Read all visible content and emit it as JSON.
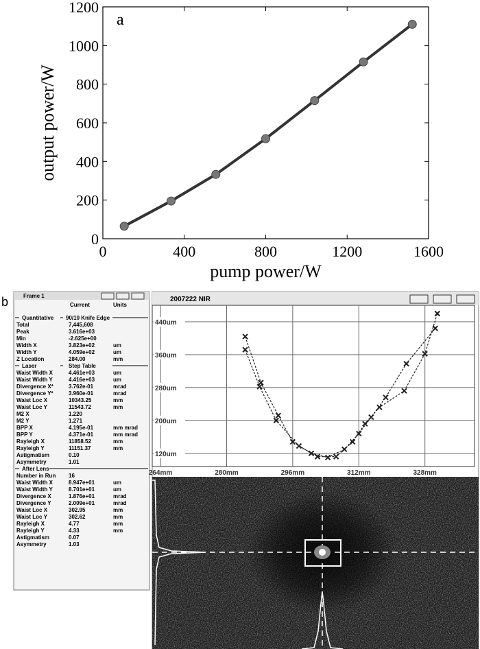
{
  "chart_data": [
    {
      "type": "line",
      "annotation": "a",
      "xlabel": "pump power/W",
      "ylabel": "output power/W",
      "x": [
        105,
        335,
        555,
        800,
        1040,
        1280,
        1520
      ],
      "series": [
        {
          "color": "#333333",
          "marker_color": "#777777",
          "values": [
            65,
            195,
            333,
            518,
            715,
            915,
            1110
          ]
        }
      ],
      "xlim": [
        0,
        1600
      ],
      "xticks": [
        0,
        400,
        800,
        1200,
        1600
      ],
      "ylim": [
        0,
        1200
      ],
      "yticks": [
        0,
        200,
        400,
        600,
        800,
        1000,
        1200
      ]
    },
    {
      "type": "scatter",
      "grid": true,
      "series": [
        {
          "color": "#222222",
          "x": [
            284.5,
            288.3,
            292.5,
            296,
            300.5,
            304.5,
            308.5,
            312,
            315,
            318.5,
            323.5,
            330.5
          ],
          "values": [
            404,
            292,
            212,
            148,
            120,
            110,
            130,
            168,
            208,
            256,
            338,
            424
          ]
        },
        {
          "color": "#222222",
          "x": [
            284.5,
            288,
            292,
            297.5,
            302,
            306.5,
            310.5,
            313.5,
            317,
            323,
            328,
            331
          ],
          "values": [
            372,
            282,
            200,
            138,
            112,
            112,
            148,
            192,
            232,
            272,
            362,
            460
          ]
        }
      ],
      "xlim": [
        262,
        340
      ],
      "xticks": [
        {
          "value": 264,
          "label": "264mm"
        },
        {
          "value": 280,
          "label": "280mm"
        },
        {
          "value": 296,
          "label": "296mm"
        },
        {
          "value": 312,
          "label": "312mm"
        },
        {
          "value": 328,
          "label": "328mm"
        }
      ],
      "ylim": [
        88,
        480
      ],
      "yticks": [
        {
          "value": 120,
          "label": "120um"
        },
        {
          "value": 200,
          "label": "200um"
        },
        {
          "value": 280,
          "label": "280um"
        },
        {
          "value": 360,
          "label": "360um"
        },
        {
          "value": 440,
          "label": "440um"
        }
      ]
    }
  ],
  "panel_label": "b",
  "nir_window": {
    "title": "2007222 NIR"
  },
  "frame": {
    "title": "Frame 1",
    "columns": [
      "Current",
      "Units"
    ],
    "sections": [
      {
        "title": "Quantitative",
        "note": "90/10 Knife Edge",
        "rows": [
          [
            "Total",
            "7,445,608"
          ],
          [
            "Peak",
            "3.616e+03"
          ],
          [
            "Min",
            "-2.625e+00"
          ],
          [
            "Width X",
            "3.823e+02",
            "um"
          ],
          [
            "Width Y",
            "4.059e+02",
            "um"
          ],
          [
            "Z Location",
            "284.00",
            "mm"
          ]
        ]
      },
      {
        "title": "Laser",
        "note": "Step Table",
        "rows": [
          [
            "Waist Width X",
            "4.461e+03",
            "um"
          ],
          [
            "Waist Width Y",
            "4.416e+03",
            "um"
          ],
          [
            "Divergence X*",
            "3.762e-01",
            "mrad"
          ],
          [
            "Divergence Y*",
            "3.960e-01",
            "mrad"
          ],
          [
            "Waist Loc X",
            "10343.25",
            "mm"
          ],
          [
            "Waist Loc Y",
            "11543.72",
            "mm"
          ],
          [
            "M2 X",
            "1.220"
          ],
          [
            "M2 Y",
            "1.271"
          ],
          [
            "BPP X",
            "4.195e-01",
            "mm mrad"
          ],
          [
            "BPP Y",
            "4.371e-01",
            "mm mrad"
          ],
          [
            "Rayleigh X",
            "11858.52",
            "mm"
          ],
          [
            "Rayleigh Y",
            "11151.37",
            "mm"
          ],
          [
            "Astigmatism",
            "0.10"
          ],
          [
            "Asymmetry",
            "1.01"
          ]
        ]
      },
      {
        "title": "After Lens",
        "rows": [
          [
            "Number in Run",
            "16"
          ],
          [
            "Waist Width X",
            "8.947e+01",
            "um"
          ],
          [
            "Waist Width Y",
            "8.701e+01",
            "um"
          ],
          [
            "Divergence X",
            "1.876e+01",
            "mrad"
          ],
          [
            "Divergence Y",
            "2.009e+01",
            "mrad"
          ],
          [
            "Waist Loc X",
            "302.95",
            "mm"
          ],
          [
            "Waist Loc Y",
            "302.62",
            "mm"
          ],
          [
            "Rayleigh X",
            "4.77",
            "mm"
          ],
          [
            "Rayleigh Y",
            "4.33",
            "mm"
          ],
          [
            "Astigmatism",
            "0.07"
          ],
          [
            "Asymmetry",
            "1.03"
          ]
        ]
      }
    ]
  }
}
